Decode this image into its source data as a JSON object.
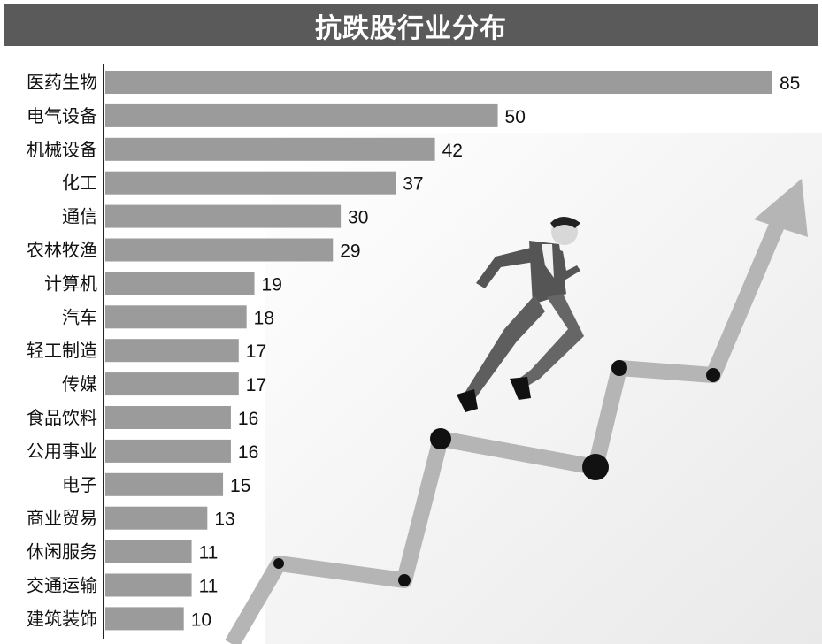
{
  "title": "抗跌股行业分布",
  "colors": {
    "title_bg": "#5a5a5a",
    "bar": "#9b9b9b",
    "axis": "#222222",
    "arrow": "#b5b5b5",
    "suit": "#555555",
    "dot": "#111111"
  },
  "chart_data": {
    "type": "bar",
    "orientation": "horizontal",
    "title": "抗跌股行业分布",
    "xlim": [
      0,
      85
    ],
    "categories": [
      "医药生物",
      "电气设备",
      "机械设备",
      "化工",
      "通信",
      "农林牧渔",
      "计算机",
      "汽车",
      "轻工制造",
      "传媒",
      "食品饮料",
      "公用事业",
      "电子",
      "商业贸易",
      "休闲服务",
      "交通运输",
      "建筑装饰"
    ],
    "values": [
      85,
      50,
      42,
      37,
      30,
      29,
      19,
      18,
      17,
      17,
      16,
      16,
      15,
      13,
      11,
      11,
      10
    ],
    "data_labels": [
      "85",
      "50",
      "42",
      "37",
      "30",
      "29",
      "19",
      "18",
      "17",
      "17",
      "16",
      "16",
      "15",
      "13",
      "11",
      "11",
      "10"
    ]
  }
}
